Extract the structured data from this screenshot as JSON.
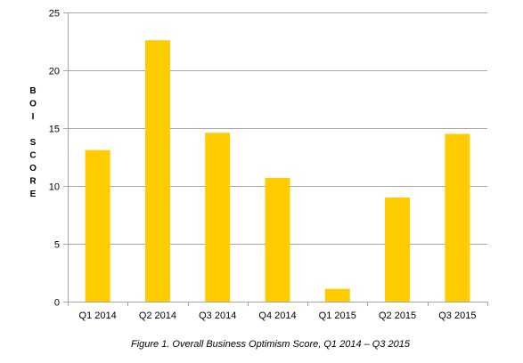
{
  "chart_data": {
    "type": "bar",
    "categories": [
      "Q1 2014",
      "Q2 2014",
      "Q3 2014",
      "Q4 2014",
      "Q1 2015",
      "Q2 2015",
      "Q3 2015"
    ],
    "values": [
      13.1,
      22.6,
      14.6,
      10.7,
      1.1,
      9.0,
      14.5
    ],
    "title": "",
    "xlabel": "",
    "ylabel": "BOI SCORE",
    "ylabel_lines": [
      "B",
      "O",
      "I",
      "",
      "S",
      "C",
      "O",
      "R",
      "E"
    ],
    "ylim": [
      0,
      25
    ],
    "yticks": [
      0,
      5,
      10,
      15,
      20,
      25
    ],
    "grid": true,
    "legend": "none",
    "bar_color": "#FFCC00",
    "grid_color": "#A6A6A6"
  },
  "caption": "Figure 1. Overall Business Optimism Score, Q1 2014 – Q3 2015"
}
